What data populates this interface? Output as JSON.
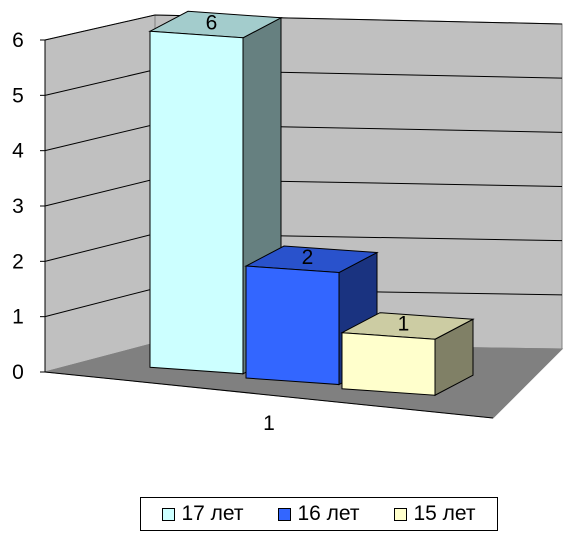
{
  "chart_data": {
    "type": "bar",
    "style": "3d-clustered-column",
    "categories": [
      "1"
    ],
    "series": [
      {
        "name": "17 лет",
        "values": [
          6
        ],
        "color": "#CCFFFF"
      },
      {
        "name": "16 лет",
        "values": [
          2
        ],
        "color": "#3366FF"
      },
      {
        "name": "15 лет",
        "values": [
          1
        ],
        "color": "#FFFFCC"
      }
    ],
    "data_labels": [
      "6",
      "2",
      "1"
    ],
    "y_ticks": [
      "0",
      "1",
      "2",
      "3",
      "4",
      "5",
      "6"
    ],
    "ylim": [
      0,
      6
    ],
    "grid": true,
    "legend_position": "bottom",
    "wall_color": "#C0C0C0",
    "floor_color": "#808080"
  }
}
